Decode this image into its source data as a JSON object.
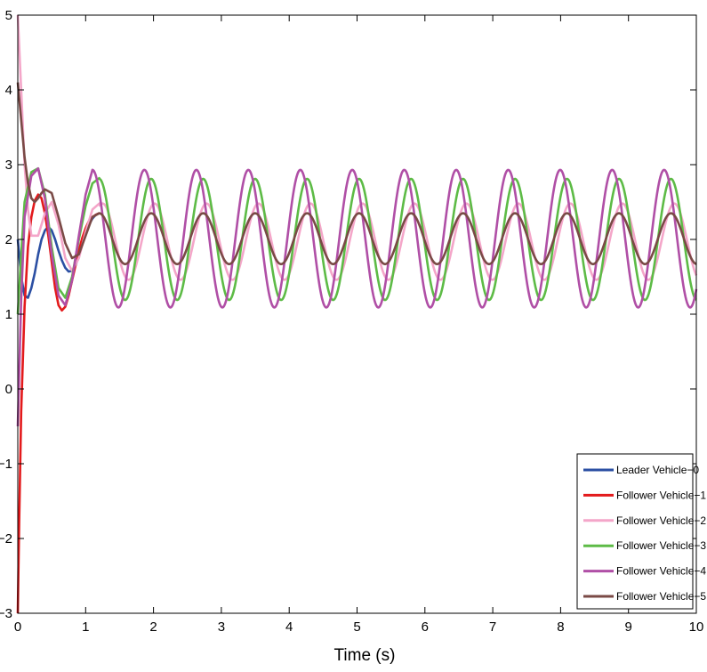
{
  "chart_data": {
    "type": "line",
    "title": "",
    "xlabel": "Time (s)",
    "ylabel": "",
    "xlim": [
      0,
      10
    ],
    "ylim": [
      -3,
      5
    ],
    "x_ticks": [
      0,
      1,
      2,
      3,
      4,
      5,
      6,
      7,
      8,
      9,
      10
    ],
    "y_ticks": [
      -3,
      -2,
      -1,
      0,
      1,
      2,
      3,
      4,
      5
    ],
    "grid": false,
    "legend_position": "bottom-right",
    "series": [
      {
        "name": "Leader Vehicle−0",
        "color": "#2b4fa3",
        "x": [
          0,
          0.05,
          0.1,
          0.15,
          0.2,
          0.25,
          0.3,
          0.35,
          0.4,
          0.45,
          0.5,
          0.55,
          0.6,
          0.65,
          0.7,
          0.75,
          0.8,
          0.85,
          0.9,
          0.95,
          1.0,
          1.05,
          1.1,
          1.15,
          1.2
        ],
        "y": [
          2.0,
          1.5,
          1.25,
          1.22,
          1.35,
          1.55,
          1.8,
          2.0,
          2.12,
          2.17,
          2.12,
          2.0,
          1.85,
          1.72,
          1.62,
          1.57,
          1.58,
          1.65,
          1.78,
          1.93,
          2.08,
          2.2,
          2.28,
          2.33,
          2.35
        ]
      },
      {
        "name": "Follower Vehicle−1",
        "color": "#e31a1c",
        "x": [
          0,
          0.02,
          0.05,
          0.1,
          0.15,
          0.2,
          0.25,
          0.3,
          0.35,
          0.4,
          0.45,
          0.5,
          0.55,
          0.6,
          0.65,
          0.7,
          0.75,
          0.8,
          0.85,
          0.9,
          0.95,
          1.0,
          1.05,
          1.1,
          1.15,
          1.2
        ],
        "y": [
          -3.0,
          -1.8,
          -0.3,
          1.1,
          1.9,
          2.3,
          2.52,
          2.6,
          2.55,
          2.35,
          2.05,
          1.7,
          1.35,
          1.12,
          1.05,
          1.1,
          1.25,
          1.45,
          1.65,
          1.85,
          2.02,
          2.15,
          2.25,
          2.3,
          2.33,
          2.35
        ]
      },
      {
        "name": "Follower Vehicle−2",
        "color": "#f4a6c9",
        "x": [
          0,
          0.05,
          0.1,
          0.15,
          0.2,
          0.3,
          0.4,
          0.5,
          0.6,
          0.7,
          0.8,
          0.9,
          1.0,
          1.1,
          1.2
        ],
        "y": [
          5.0,
          4.0,
          3.0,
          2.4,
          2.05,
          2.05,
          2.35,
          2.5,
          2.2,
          1.75,
          1.58,
          1.75,
          2.1,
          2.4,
          2.48
        ],
        "periodic": {
          "start": 1.2,
          "period": 0.766,
          "mean": 1.97,
          "amplitude": 0.51,
          "peak": 1.25
        }
      },
      {
        "name": "Follower Vehicle−3",
        "color": "#5dbb46",
        "x": [
          0,
          0.05,
          0.1,
          0.2,
          0.3,
          0.4,
          0.5,
          0.6,
          0.7,
          0.8,
          0.9,
          1.0,
          1.1,
          1.2
        ],
        "y": [
          1.0,
          1.8,
          2.5,
          2.9,
          2.95,
          2.6,
          1.9,
          1.35,
          1.22,
          1.5,
          2.0,
          2.45,
          2.75,
          2.82
        ],
        "periodic": {
          "start": 1.2,
          "period": 0.766,
          "mean": 2.0,
          "amplitude": 0.81,
          "peak": 1.2
        }
      },
      {
        "name": "Follower Vehicle−4",
        "color": "#b04fa6",
        "x": [
          0,
          0.05,
          0.1,
          0.2,
          0.3,
          0.4,
          0.5,
          0.6,
          0.7,
          0.8,
          0.9,
          1.0,
          1.1
        ],
        "y": [
          -0.5,
          1.2,
          2.3,
          2.85,
          2.95,
          2.55,
          1.8,
          1.25,
          1.12,
          1.45,
          2.05,
          2.6,
          2.93
        ],
        "periodic": {
          "start": 1.1,
          "period": 0.766,
          "mean": 2.01,
          "amplitude": 0.92,
          "peak": 1.1
        }
      },
      {
        "name": "Follower Vehicle−5",
        "color": "#7a4a46",
        "x": [
          0,
          0.05,
          0.1,
          0.15,
          0.2,
          0.25,
          0.3,
          0.35,
          0.4,
          0.5,
          0.6,
          0.7,
          0.8,
          0.9,
          1.0,
          1.1,
          1.2
        ],
        "y": [
          4.1,
          3.6,
          3.1,
          2.75,
          2.55,
          2.5,
          2.55,
          2.62,
          2.67,
          2.62,
          2.3,
          1.95,
          1.75,
          1.8,
          2.05,
          2.3,
          2.35
        ],
        "periodic": {
          "start": 1.2,
          "period": 0.766,
          "mean": 2.01,
          "amplitude": 0.34,
          "peak": 1.2
        }
      }
    ]
  }
}
